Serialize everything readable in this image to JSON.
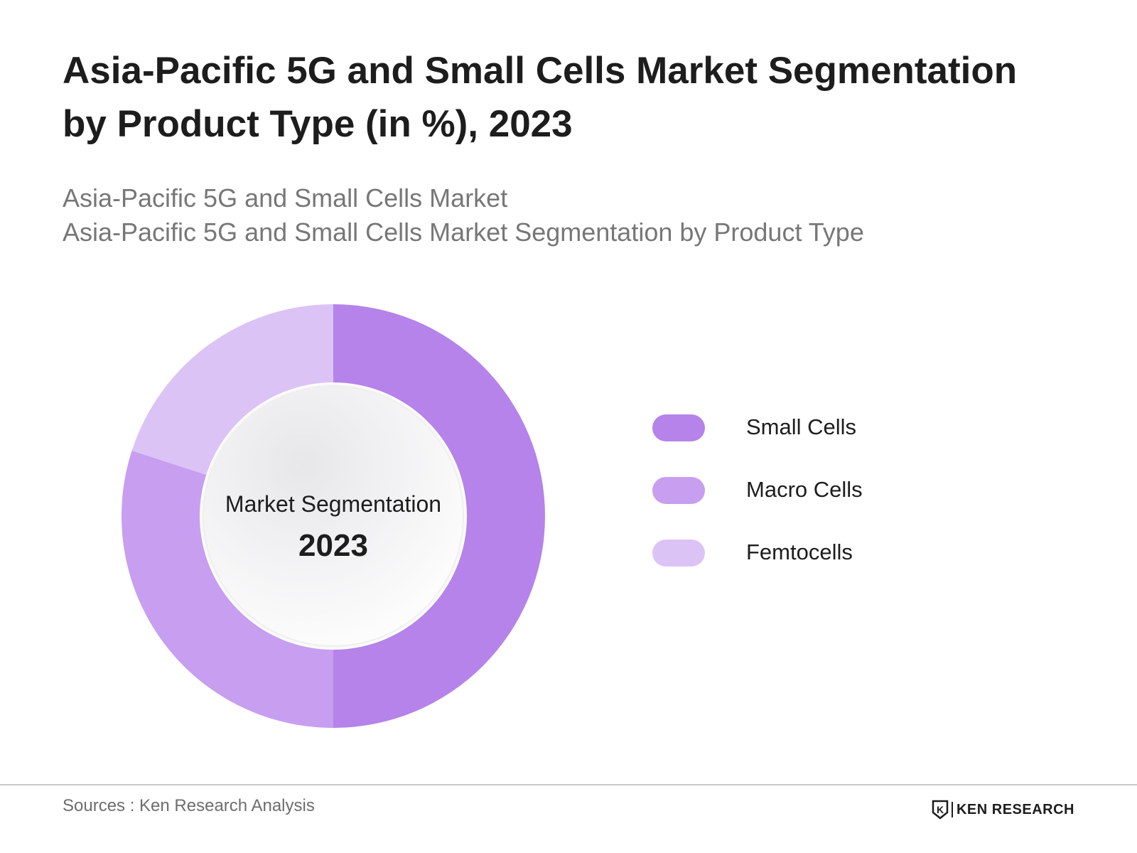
{
  "header": {
    "title": "Asia-Pacific 5G and Small Cells Market Segmentation by Product Type (in %), 2023",
    "subtitle_line1": "Asia-Pacific 5G and Small Cells Market",
    "subtitle_line2": "Asia-Pacific 5G and Small Cells Market Segmentation by Product Type"
  },
  "chart_data": {
    "type": "pie",
    "variant": "donut",
    "center_label": "Market Segmentation",
    "center_value": "2023",
    "categories": [
      "Small Cells",
      "Macro Cells",
      "Femtocells"
    ],
    "values": [
      50,
      30,
      20
    ],
    "colors": [
      "#b583ea",
      "#c79ef0",
      "#dcc3f6"
    ],
    "start_angle_deg": 0,
    "direction": "clockwise",
    "legend_position": "right"
  },
  "legend": {
    "items": [
      {
        "label": "Small Cells",
        "color": "#b583ea"
      },
      {
        "label": "Macro Cells",
        "color": "#c79ef0"
      },
      {
        "label": "Femtocells",
        "color": "#dcc3f6"
      }
    ]
  },
  "footer": {
    "source": "Sources : Ken Research Analysis",
    "brand": "KEN RESEARCH",
    "brand_mark_letter": "K"
  }
}
